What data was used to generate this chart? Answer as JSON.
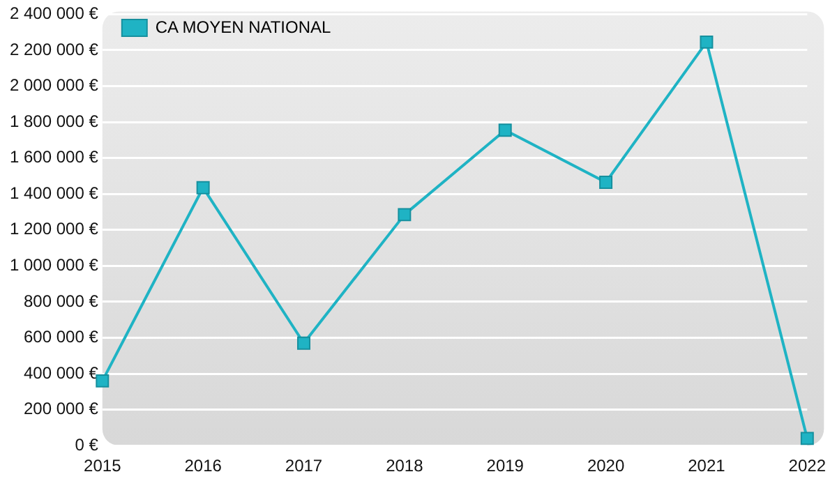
{
  "chart_data": {
    "type": "line",
    "categories": [
      "2015",
      "2016",
      "2017",
      "2018",
      "2019",
      "2020",
      "2021",
      "2022"
    ],
    "series": [
      {
        "name": "CA MOYEN NATIONAL",
        "color": "#1fb3c4",
        "values": [
          360000,
          1435000,
          570000,
          1285000,
          1755000,
          1465000,
          2245000,
          40000
        ]
      }
    ],
    "ylim": [
      0,
      2400000
    ],
    "yticks": [
      {
        "value": 0,
        "label": "0 €"
      },
      {
        "value": 200000,
        "label": "200 000 €"
      },
      {
        "value": 400000,
        "label": "400 000 €"
      },
      {
        "value": 600000,
        "label": "600 000 €"
      },
      {
        "value": 800000,
        "label": "800 000 €"
      },
      {
        "value": 1000000,
        "label": "1 000 000 €"
      },
      {
        "value": 1200000,
        "label": "1 200 000 €"
      },
      {
        "value": 1400000,
        "label": "1 400 000 €"
      },
      {
        "value": 1600000,
        "label": "1 600 000 €"
      },
      {
        "value": 1800000,
        "label": "1 800 000 €"
      },
      {
        "value": 2000000,
        "label": "2 000 000 €"
      },
      {
        "value": 2200000,
        "label": "2 200 000 €"
      },
      {
        "value": 2400000,
        "label": "2 400 000 €"
      }
    ],
    "grid": "y",
    "legend": "top left",
    "marker": "square",
    "line_style": "solid"
  }
}
